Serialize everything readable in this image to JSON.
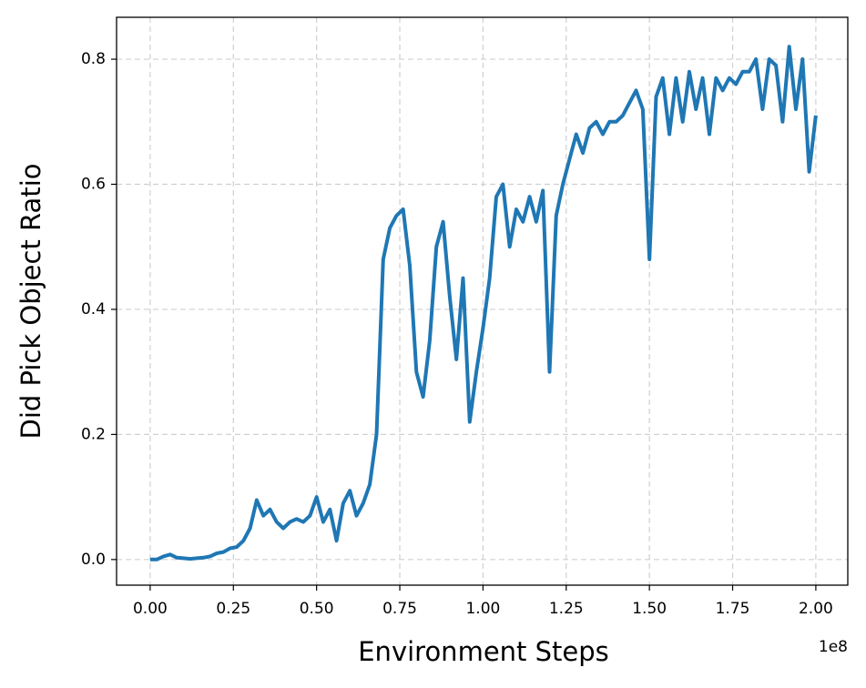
{
  "chart_data": {
    "type": "line",
    "xlabel": "Environment Steps",
    "ylabel": "Did Pick Object Ratio",
    "x_offset_label": "1e8",
    "x": [
      0,
      2000000,
      4000000,
      6000000,
      8000000,
      10000000,
      12000000,
      14000000,
      16000000,
      18000000,
      20000000,
      22000000,
      24000000,
      26000000,
      28000000,
      30000000,
      32000000,
      34000000,
      36000000,
      38000000,
      40000000,
      42000000,
      44000000,
      46000000,
      48000000,
      50000000,
      52000000,
      54000000,
      56000000,
      58000000,
      60000000,
      62000000,
      64000000,
      66000000,
      68000000,
      70000000,
      72000000,
      74000000,
      76000000,
      78000000,
      80000000,
      82000000,
      84000000,
      86000000,
      88000000,
      90000000,
      92000000,
      94000000,
      96000000,
      98000000,
      100000000,
      102000000,
      104000000,
      106000000,
      108000000,
      110000000,
      112000000,
      114000000,
      116000000,
      118000000,
      120000000,
      122000000,
      124000000,
      126000000,
      128000000,
      130000000,
      132000000,
      134000000,
      136000000,
      138000000,
      140000000,
      142000000,
      144000000,
      146000000,
      148000000,
      150000000,
      152000000,
      154000000,
      156000000,
      158000000,
      160000000,
      162000000,
      164000000,
      166000000,
      168000000,
      170000000,
      172000000,
      174000000,
      176000000,
      178000000,
      180000000,
      182000000,
      184000000,
      186000000,
      188000000,
      190000000,
      192000000,
      194000000,
      196000000,
      198000000,
      200000000
    ],
    "series": [
      {
        "name": "Did Pick Object Ratio",
        "color": "#1f77b4",
        "values": [
          0.0,
          0.0,
          0.005,
          0.008,
          0.003,
          0.002,
          0.001,
          0.002,
          0.003,
          0.005,
          0.01,
          0.012,
          0.018,
          0.02,
          0.03,
          0.05,
          0.095,
          0.07,
          0.08,
          0.06,
          0.05,
          0.06,
          0.065,
          0.06,
          0.07,
          0.1,
          0.06,
          0.08,
          0.03,
          0.09,
          0.11,
          0.07,
          0.09,
          0.12,
          0.2,
          0.48,
          0.53,
          0.55,
          0.56,
          0.47,
          0.3,
          0.26,
          0.35,
          0.5,
          0.54,
          0.42,
          0.32,
          0.45,
          0.22,
          0.3,
          0.37,
          0.45,
          0.58,
          0.6,
          0.5,
          0.56,
          0.54,
          0.58,
          0.54,
          0.59,
          0.3,
          0.55,
          0.6,
          0.64,
          0.68,
          0.65,
          0.69,
          0.7,
          0.68,
          0.7,
          0.7,
          0.71,
          0.73,
          0.75,
          0.72,
          0.48,
          0.74,
          0.77,
          0.68,
          0.77,
          0.7,
          0.78,
          0.72,
          0.77,
          0.68,
          0.77,
          0.75,
          0.77,
          0.76,
          0.78,
          0.78,
          0.8,
          0.72,
          0.8,
          0.79,
          0.7,
          0.82,
          0.72,
          0.8,
          0.62,
          0.71
        ]
      }
    ],
    "xlim": [
      -10100000,
      209600000
    ],
    "xticks": [
      {
        "value": 0,
        "label": "0.00"
      },
      {
        "value": 25000000,
        "label": "0.25"
      },
      {
        "value": 50000000,
        "label": "0.50"
      },
      {
        "value": 75000000,
        "label": "0.75"
      },
      {
        "value": 100000000,
        "label": "1.00"
      },
      {
        "value": 125000000,
        "label": "1.25"
      },
      {
        "value": 150000000,
        "label": "1.50"
      },
      {
        "value": 175000000,
        "label": "1.75"
      },
      {
        "value": 200000000,
        "label": "2.00"
      }
    ],
    "ylim": [
      -0.041,
      0.867
    ],
    "yticks": [
      {
        "value": 0,
        "label": "0.0"
      },
      0.2,
      0.4,
      0.6,
      0.8
    ],
    "grid": true
  }
}
